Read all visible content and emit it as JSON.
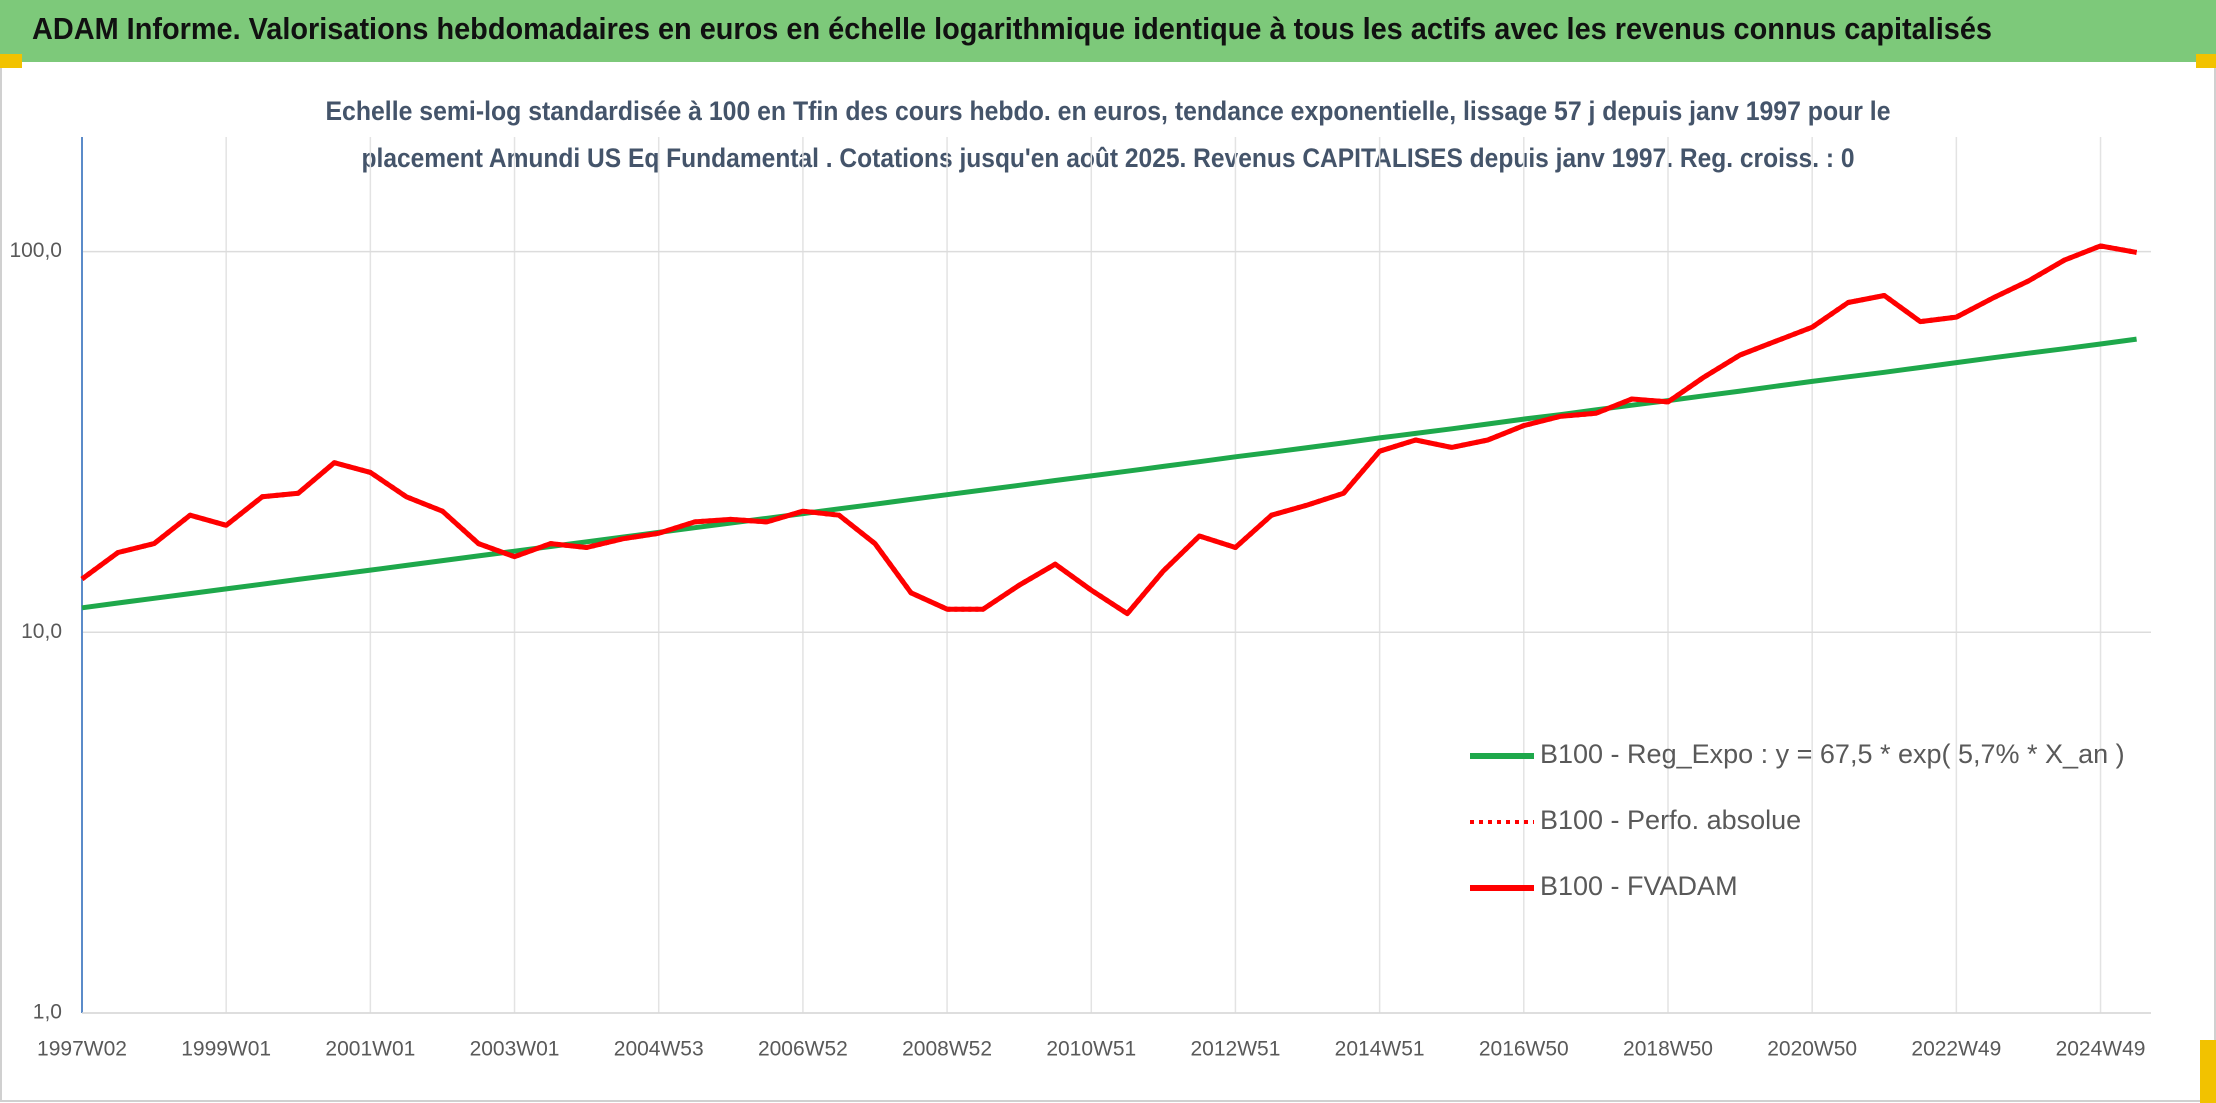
{
  "chart_data": {
    "type": "line",
    "title": "ADAM Informe. Valorisations hebdomadaires en euros en échelle logarithmique identique à tous les actifs avec les revenus connus capitalisés",
    "subtitle": [
      "Echelle semi-log standardisée à 100 en Tfin des cours hebdo. en euros, tendance exponentielle, lissage 57 j depuis janv 1997 pour le",
      "placement Amundi US Eq Fundamental . Cotations jusqu'en août 2025. Revenus CAPITALISES depuis janv 1997. Reg. croiss. : 0"
    ],
    "categories": [
      "1997W02",
      null,
      null,
      null,
      "1999W01",
      null,
      null,
      null,
      "2001W01",
      null,
      null,
      null,
      "2003W01",
      null,
      null,
      null,
      "2004W53",
      null,
      null,
      null,
      "2006W52",
      null,
      null,
      null,
      "2008W52",
      null,
      null,
      null,
      "2010W51",
      null,
      null,
      null,
      "2012W51",
      null,
      null,
      null,
      "2014W51",
      null,
      null,
      null,
      "2016W50",
      null,
      null,
      null,
      "2018W50",
      null,
      null,
      null,
      "2020W50",
      null,
      null,
      null,
      "2022W49",
      null,
      null,
      null,
      "2024W49",
      null
    ],
    "series": [
      {
        "name": "B100 - Reg_Expo : y = 67,5 * exp( 5,7% *  X_an )",
        "color": "#1ea84b",
        "dash": "solid",
        "values": [
          11.6,
          11.94,
          12.28,
          12.64,
          13.0,
          13.38,
          13.77,
          14.16,
          14.57,
          14.99,
          15.43,
          15.87,
          16.33,
          16.8,
          17.29,
          17.79,
          18.3,
          18.83,
          19.37,
          19.93,
          20.5,
          21.1,
          21.7,
          22.34,
          22.99,
          23.65,
          24.33,
          25.04,
          25.76,
          26.5,
          27.27,
          28.06,
          28.9,
          29.7,
          30.56,
          31.45,
          32.4,
          33.3,
          34.25,
          35.25,
          36.3,
          37.3,
          38.4,
          39.5,
          40.6,
          41.8,
          43.0,
          44.3,
          45.6,
          46.9,
          48.2,
          49.6,
          51.1,
          52.6,
          54.1,
          55.6,
          57.2,
          58.9
        ]
      },
      {
        "name": "B100 - Perfo. absolue",
        "color": "#ff0000",
        "dash": "dotted",
        "values": [
          13.8,
          16.2,
          17.1,
          20.3,
          19.1,
          22.7,
          23.2,
          27.9,
          26.3,
          22.7,
          20.8,
          17.1,
          15.8,
          17.1,
          16.7,
          17.6,
          18.2,
          19.5,
          19.8,
          19.5,
          20.8,
          20.3,
          17.1,
          12.7,
          11.5,
          11.5,
          13.3,
          15.1,
          12.9,
          11.2,
          14.5,
          17.9,
          16.7,
          20.3,
          21.6,
          23.2,
          29.9,
          32.0,
          30.6,
          32.0,
          34.9,
          36.9,
          37.6,
          41.0,
          40.3,
          46.8,
          53.5,
          58.2,
          63.3,
          73.5,
          76.7,
          65.5,
          67.3,
          75.4,
          83.7,
          95.0,
          103.5,
          99.5
        ]
      },
      {
        "name": "B100 - FVADAM",
        "color": "#ff0000",
        "dash": "solid",
        "values": [
          13.8,
          16.2,
          17.1,
          20.3,
          19.1,
          22.7,
          23.2,
          27.9,
          26.3,
          22.7,
          20.8,
          17.1,
          15.8,
          17.1,
          16.7,
          17.6,
          18.2,
          19.5,
          19.8,
          19.5,
          20.8,
          20.3,
          17.1,
          12.7,
          11.5,
          11.5,
          13.3,
          15.1,
          12.9,
          11.2,
          14.5,
          17.9,
          16.7,
          20.3,
          21.6,
          23.2,
          29.9,
          32.0,
          30.6,
          32.0,
          34.9,
          36.9,
          37.6,
          41.0,
          40.3,
          46.8,
          53.5,
          58.2,
          63.3,
          73.5,
          76.7,
          65.5,
          67.3,
          75.4,
          83.7,
          95.0,
          103.5,
          99.5
        ]
      }
    ],
    "ylim": [
      1,
      200
    ],
    "yscale": "log",
    "yticks": [
      {
        "value": 1,
        "label": "1,0"
      },
      {
        "value": 10,
        "label": "10,0"
      },
      {
        "value": 100,
        "label": "100,0"
      }
    ],
    "grid": true,
    "legend": "lower right",
    "header_color": "#7dc97a"
  }
}
